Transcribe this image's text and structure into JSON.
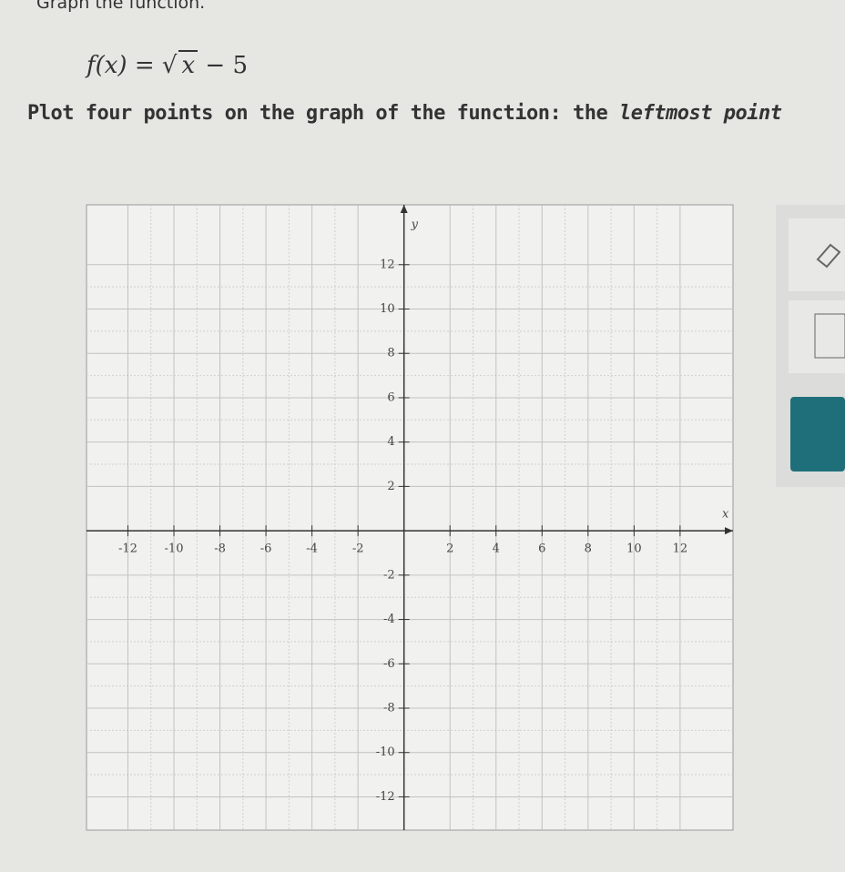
{
  "header": {
    "title": "Graph the function."
  },
  "formula": {
    "lhs": "f(x) =",
    "radicand": "x",
    "rhs": "− 5"
  },
  "instruction": {
    "text": "Plot four points on the graph of the function: the ",
    "emphasis": "leftmost point"
  },
  "graph": {
    "x_label": "x",
    "y_label": "y",
    "xlim": [
      -13.8,
      14.3
    ],
    "ylim": [
      -13.5,
      14.7
    ],
    "xticks": [
      -12,
      -10,
      -8,
      -6,
      -4,
      -2,
      2,
      4,
      6,
      8,
      10,
      12
    ],
    "yticks": [
      -12,
      -10,
      -8,
      -6,
      -4,
      -2,
      2,
      4,
      6,
      8,
      10,
      12
    ]
  }
}
